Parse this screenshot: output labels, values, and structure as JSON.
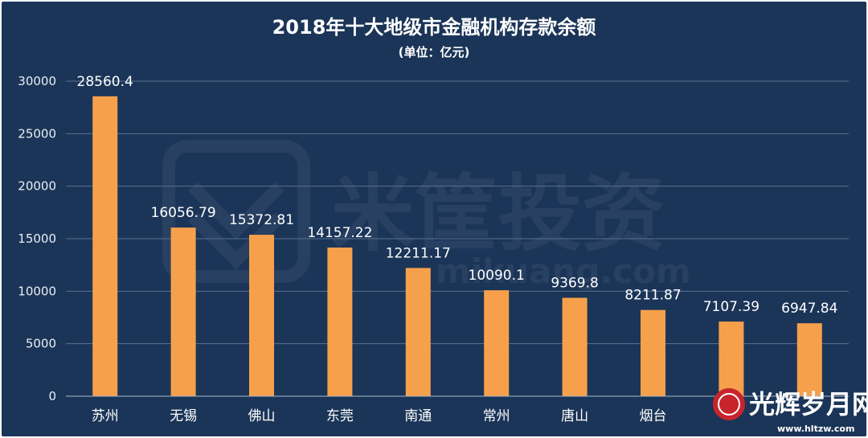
{
  "chart_data": {
    "type": "bar",
    "title": "2018年十大地级市金融机构存款余额",
    "subtitle": "(单位：亿元)",
    "categories": [
      "苏州",
      "无锡",
      "佛山",
      "东莞",
      "南通",
      "常州",
      "唐山",
      "烟台",
      "",
      ""
    ],
    "values": [
      28560.4,
      16056.79,
      15372.81,
      14157.22,
      12211.17,
      10090.1,
      9369.8,
      8211.87,
      7107.39,
      6947.84
    ],
    "value_labels": [
      "28560.4",
      "16056.79",
      "15372.81",
      "14157.22",
      "12211.17",
      "10090.1",
      "9369.8",
      "8211.87",
      "7107.39",
      "6947.84"
    ],
    "y_ticks": [
      0,
      5000,
      10000,
      15000,
      20000,
      25000,
      30000
    ],
    "ylim": [
      0,
      30000
    ],
    "grid": true,
    "legend": "none",
    "colors": {
      "background": "#1b3558",
      "bar": "#f7a04b",
      "grid": "#5a7190",
      "text": "#ffffff"
    }
  },
  "watermark": {
    "text": "米筐投资",
    "url": "mikuang.com"
  },
  "corner_logo": {
    "text": "光辉岁月网",
    "url": "www.hltzw.com"
  }
}
